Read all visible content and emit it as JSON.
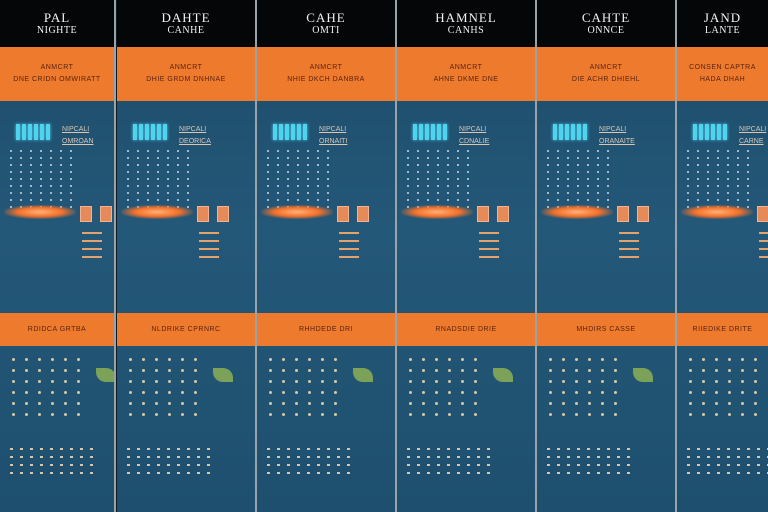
{
  "panels": [
    {
      "title": "PAL",
      "subtitle": "NIGHTE",
      "band1_line1": "ANMCRT",
      "band1_line2": "DNE CRIDN OMWIRATT",
      "label": "RDIDCA GRTBA",
      "mlabel_1": "NIPCALI",
      "mlabel_2": "OMROAN"
    },
    {
      "title": "DAHTE",
      "subtitle": "CANHE",
      "band1_line1": "ANMCRT",
      "band1_line2": "DHIE GRDM DNHNAE",
      "label": "NLDRIKE CPRNRC",
      "mlabel_1": "NIPCALI",
      "mlabel_2": "DEORICA"
    },
    {
      "title": "CAHE",
      "subtitle": "OMTI",
      "band1_line1": "ANMCRT",
      "band1_line2": "NHIE DKCH DANBRA",
      "label": "RHHDEDE DRI",
      "mlabel_1": "NIPCALI",
      "mlabel_2": "ORNAITI"
    },
    {
      "title": "HAMNEL",
      "subtitle": "CANHS",
      "band1_line1": "ANMCRT",
      "band1_line2": "AHNE DKME DNE",
      "label": "RNADSDIE DRIE",
      "mlabel_1": "NIPCALI",
      "mlabel_2": "CDNALIE"
    },
    {
      "title": "CAHTE",
      "subtitle": "ONNCE",
      "band1_line1": "ANMCRT",
      "band1_line2": "DIE ACHR DHIEHL",
      "label": "MHDIRS CASSE",
      "mlabel_1": "NIPCALI",
      "mlabel_2": "ORANAITE"
    },
    {
      "title": "JAND",
      "subtitle": "LANTE",
      "band1_line1": "CONSEN CAPTRA",
      "band1_line2": "HADA DHAH",
      "label": "RIIEDIKE DRITE",
      "mlabel_1": "NIPCALI",
      "mlabel_2": "CARNE"
    }
  ],
  "colors": {
    "accent": "#ee7a2e",
    "panel_bg": "#245878",
    "header_bg": "#050607"
  }
}
